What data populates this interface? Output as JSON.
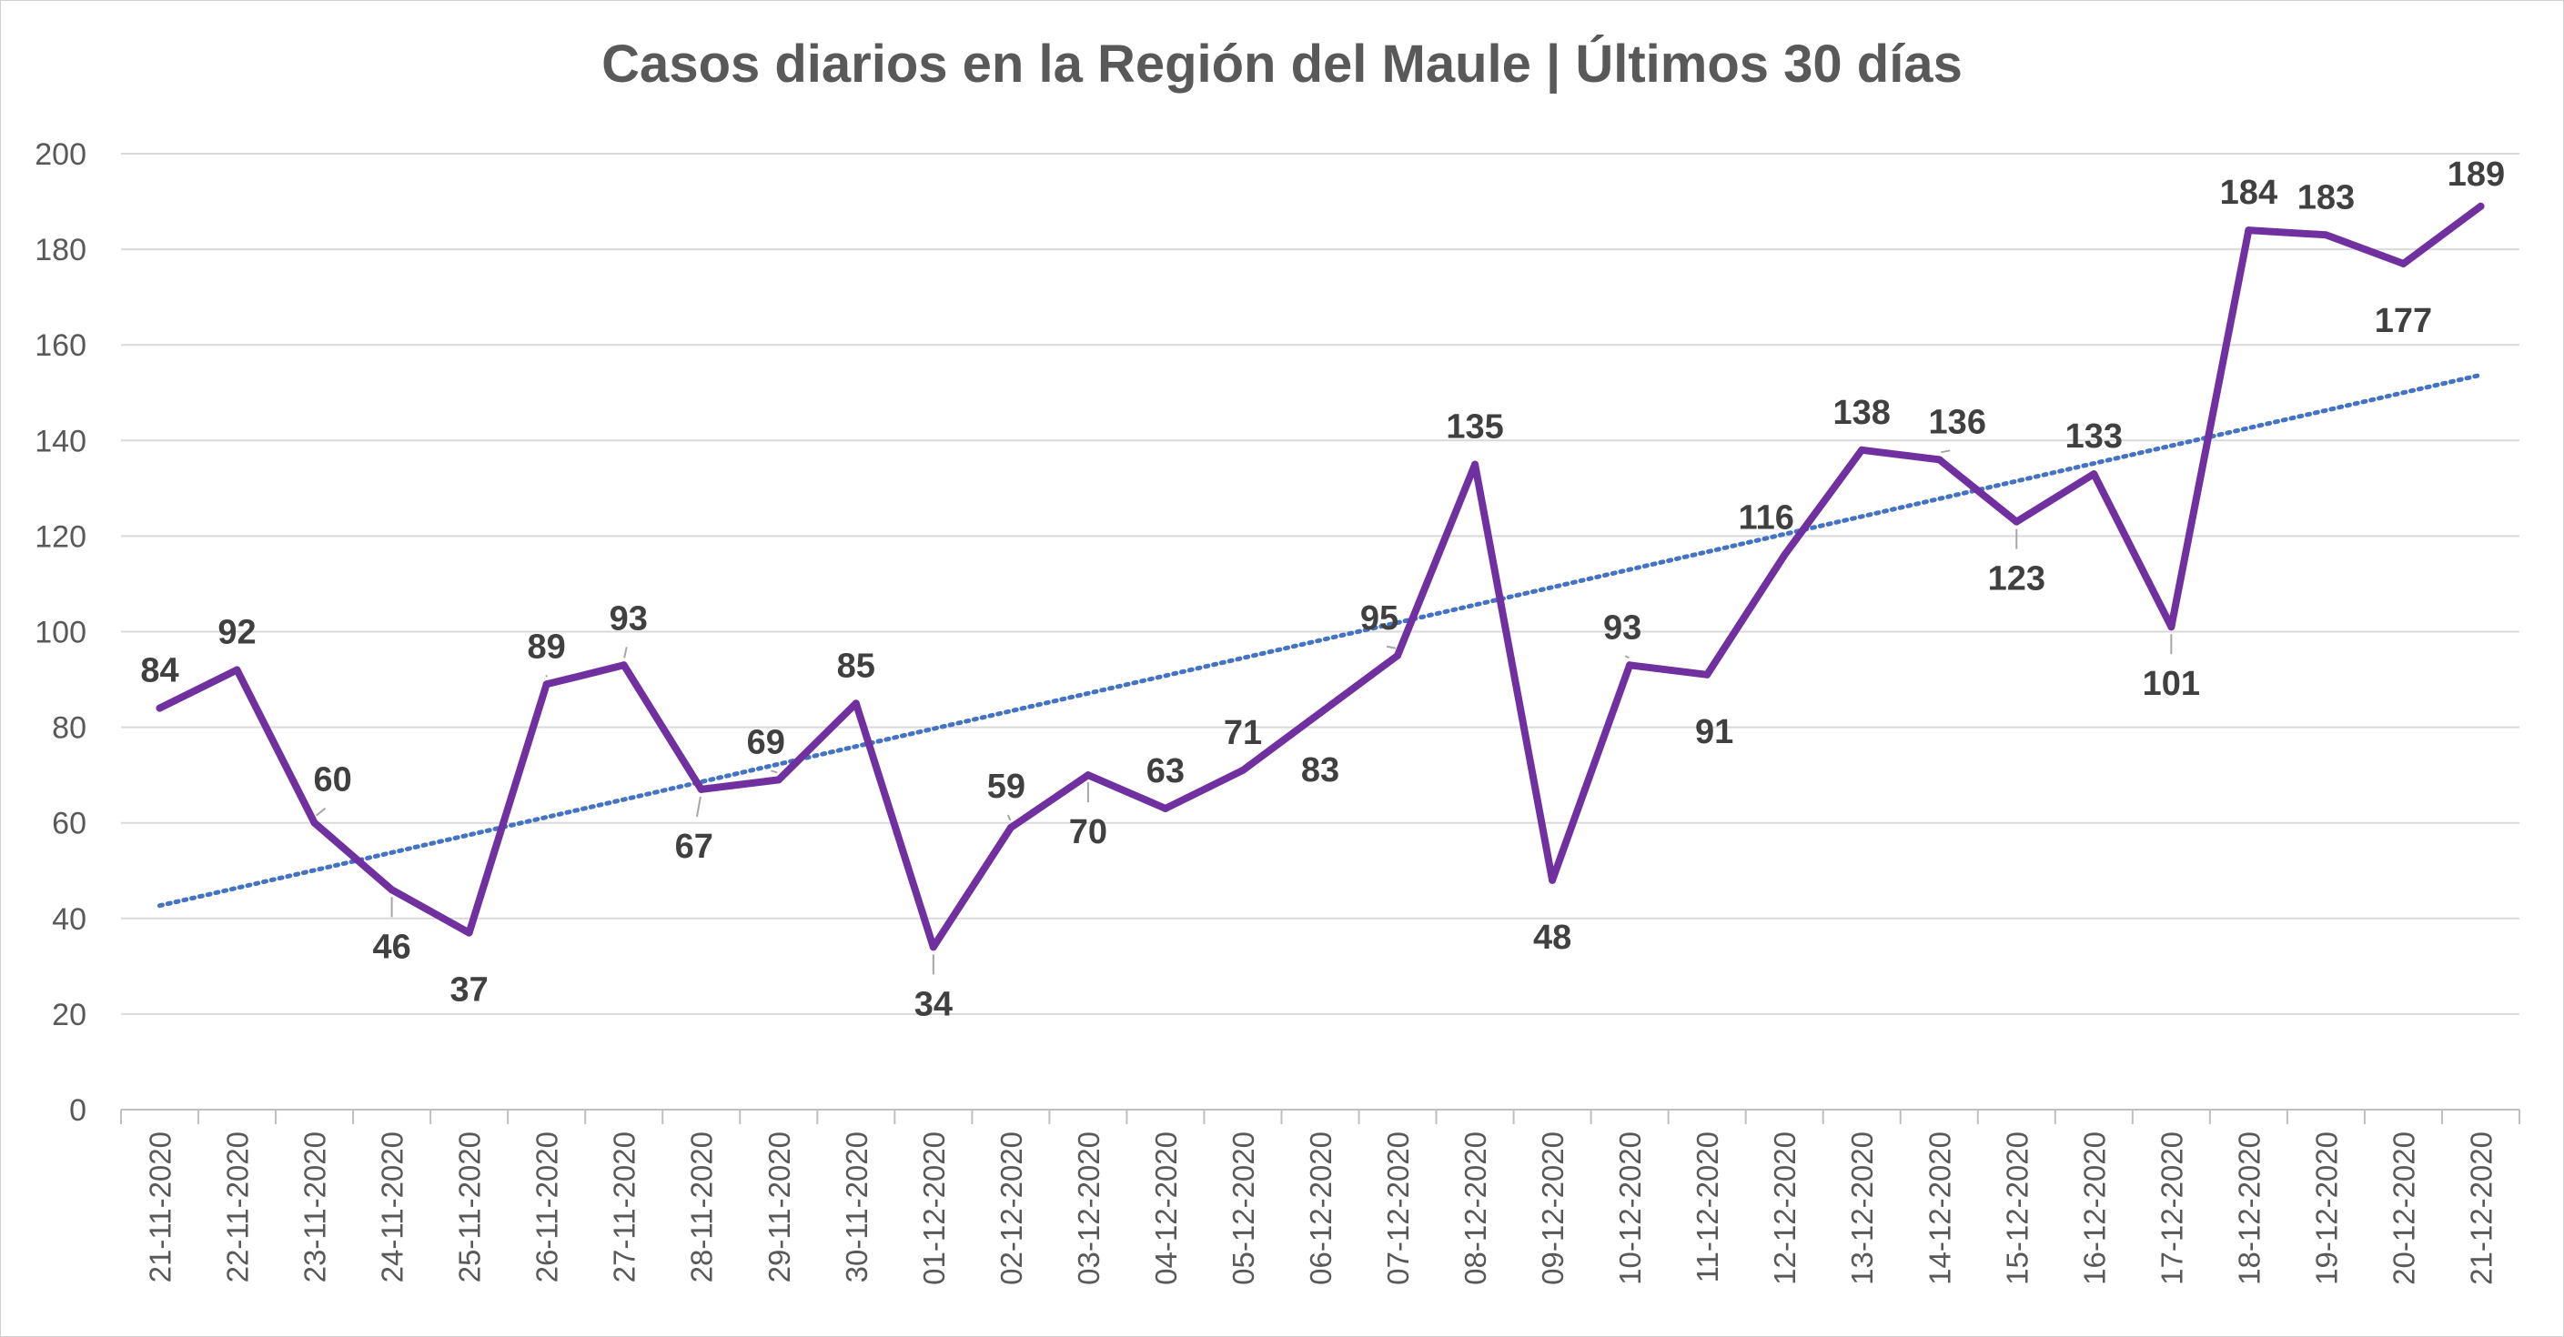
{
  "chart_data": {
    "type": "line",
    "title": "Casos diarios en la Región del Maule | Últimos 30 días",
    "xlabel": "",
    "ylabel": "",
    "ylim": [
      0,
      200
    ],
    "yticks": [
      0,
      20,
      40,
      60,
      80,
      100,
      120,
      140,
      160,
      180,
      200
    ],
    "grid": true,
    "legend": "none",
    "categories": [
      "21-11-2020",
      "22-11-2020",
      "23-11-2020",
      "24-11-2020",
      "25-11-2020",
      "26-11-2020",
      "27-11-2020",
      "28-11-2020",
      "29-11-2020",
      "30-11-2020",
      "01-12-2020",
      "02-12-2020",
      "03-12-2020",
      "04-12-2020",
      "05-12-2020",
      "06-12-2020",
      "07-12-2020",
      "08-12-2020",
      "09-12-2020",
      "10-12-2020",
      "11-12-2020",
      "12-12-2020",
      "13-12-2020",
      "14-12-2020",
      "15-12-2020",
      "16-12-2020",
      "17-12-2020",
      "18-12-2020",
      "19-12-2020",
      "20-12-2020",
      "21-12-2020"
    ],
    "series": [
      {
        "values": [
          84,
          92,
          60,
          46,
          37,
          89,
          93,
          67,
          69,
          85,
          34,
          59,
          70,
          63,
          71,
          83,
          95,
          135,
          48,
          93,
          91,
          116,
          138,
          136,
          123,
          133,
          101,
          184,
          183,
          177,
          189
        ],
        "color": "#7030a0",
        "data_labels": true
      }
    ],
    "trendline": {
      "type": "linear",
      "color": "#4472c4",
      "style": "dotted"
    }
  }
}
